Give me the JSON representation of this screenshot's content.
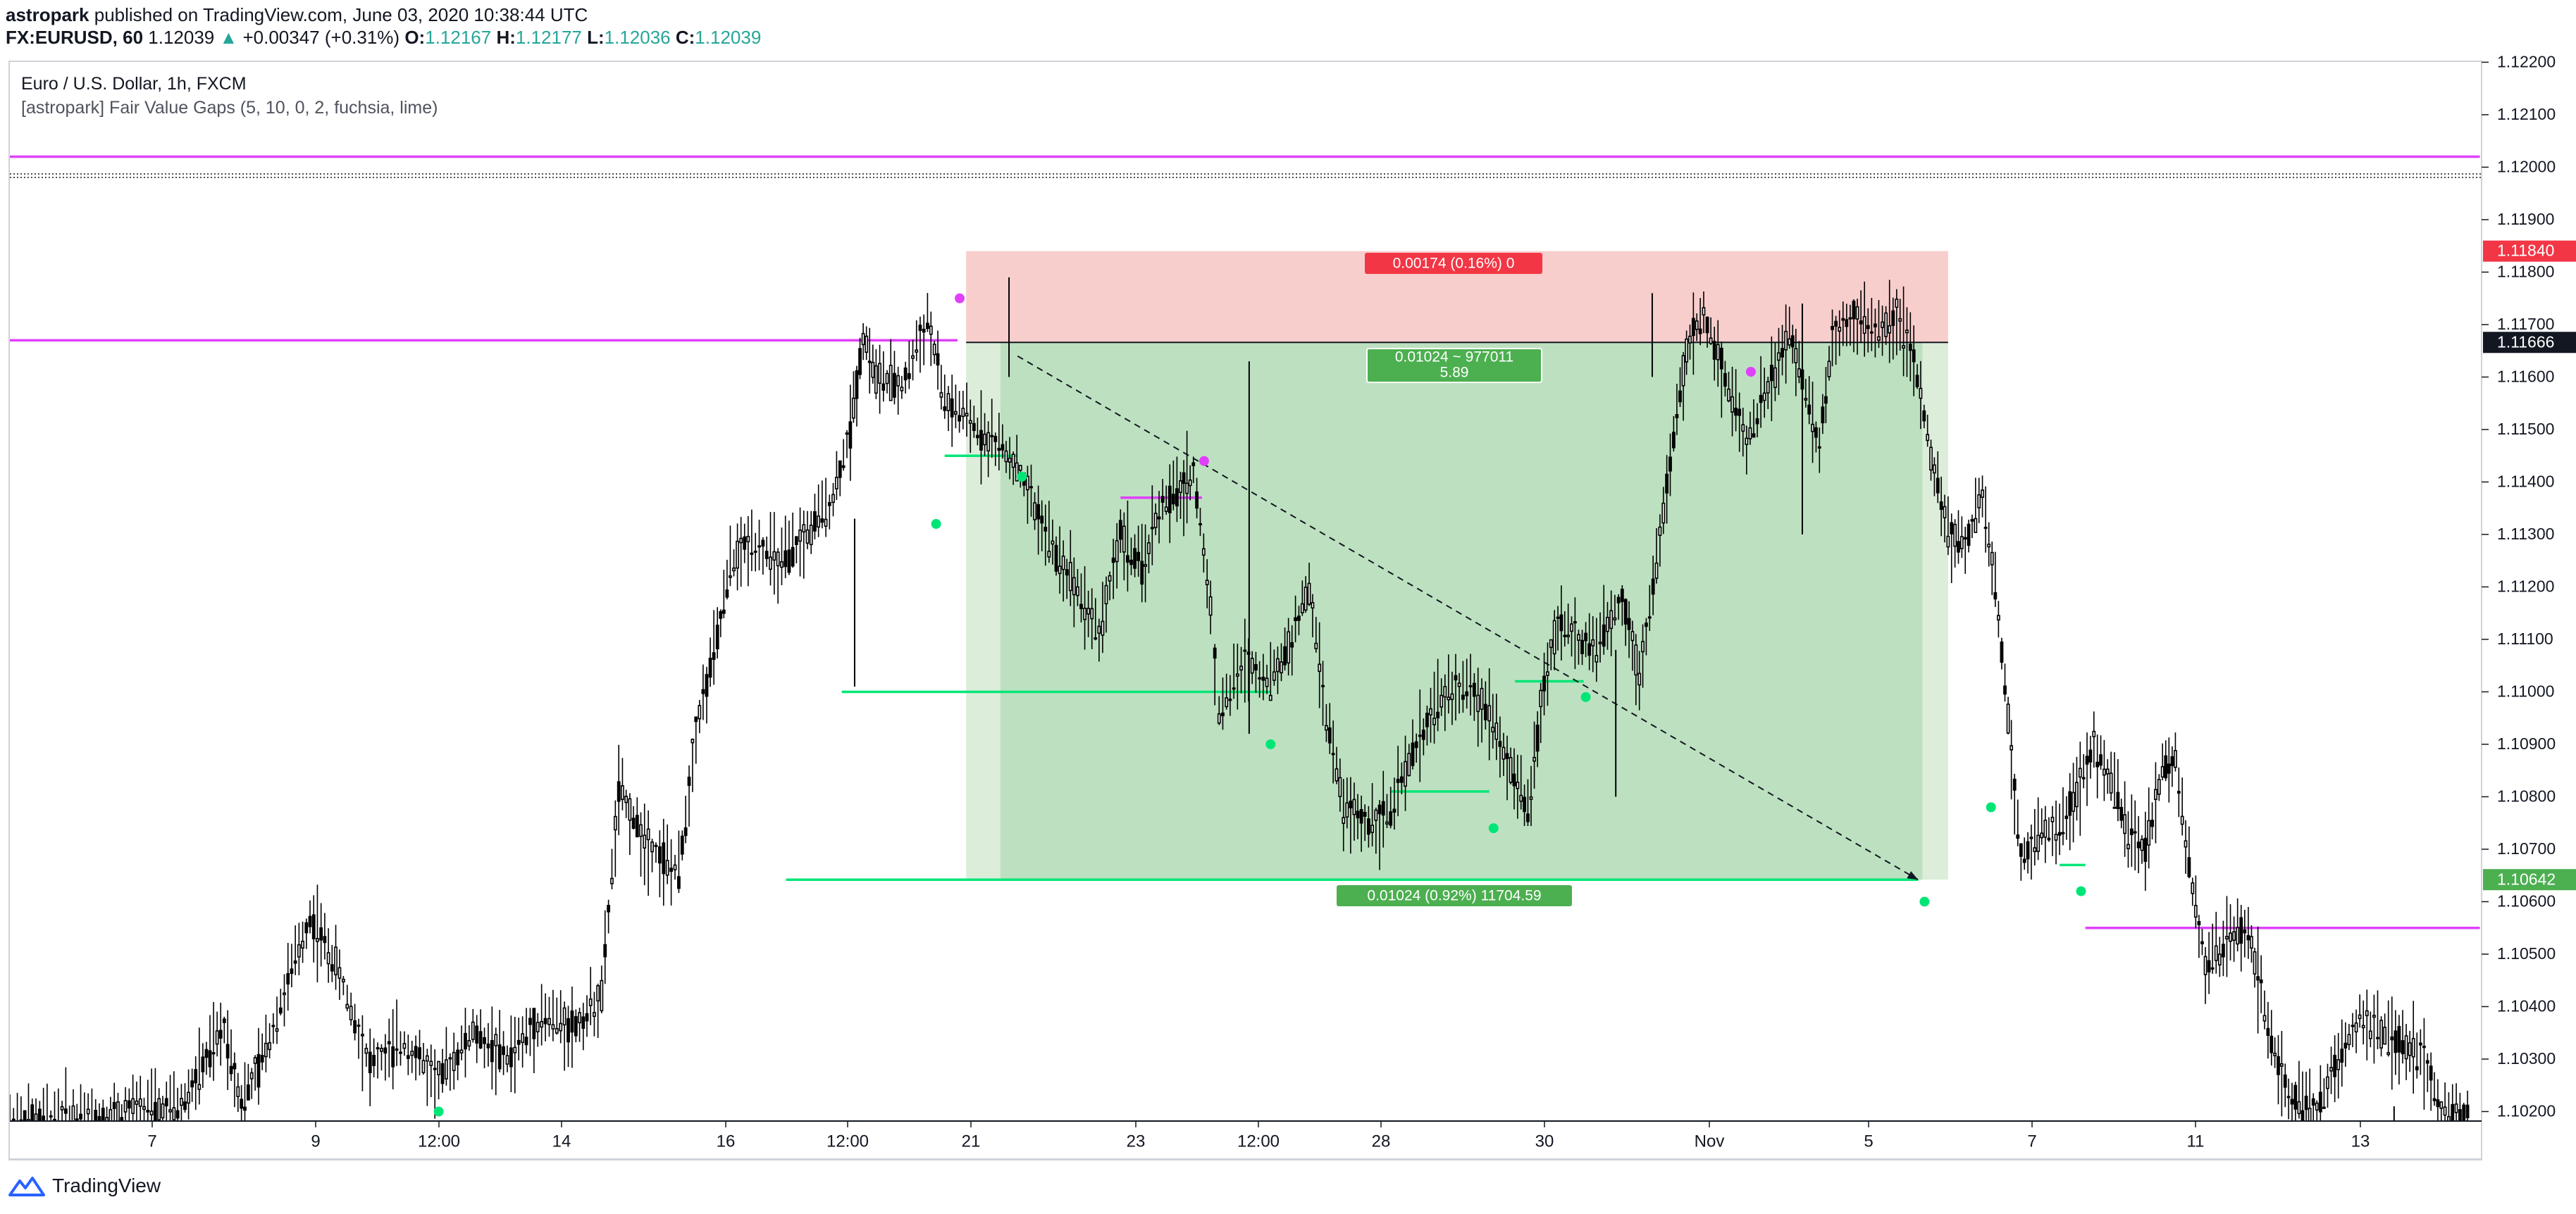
{
  "header": {
    "author": "astropark",
    "published_text": "published on TradingView.com, June 03, 2020 10:38:44 UTC",
    "symbol": "FX:EURUSD, 60",
    "last": "1.12039",
    "change_arrow": "▲",
    "change": "+0.00347 (+0.31%)",
    "o_label": "O:",
    "o_value": "1.12167",
    "h_label": "H:",
    "h_value": "1.12177",
    "l_label": "L:",
    "l_value": "1.12036",
    "c_label": "C:",
    "c_value": "1.12039"
  },
  "legend": {
    "title": "Euro / U.S. Dollar, 1h, FXCM",
    "indicator": "[astropark] Fair Value Gaps (5, 10, 0, 2, fuchsia, lime)"
  },
  "footer": {
    "brand": "TradingView",
    "brand_icon": "tradingview-logo-icon"
  },
  "colors": {
    "fuchsia": "#e040fb",
    "lime": "#00e676",
    "candle": "#000000",
    "stop_zone": "#f8cecc",
    "target_zone": "#bde1c0",
    "stop_badge": "#f23645",
    "target_badge": "#4caf50"
  },
  "chart_data": {
    "type": "candlestick",
    "title": "Euro / U.S. Dollar, 1h, FXCM",
    "x_ticks": [
      "7",
      "9",
      "12:00",
      "14",
      "16",
      "12:00",
      "21",
      "23",
      "12:00",
      "28",
      "30",
      "Nov",
      "5",
      "7",
      "11",
      "13"
    ],
    "y_ticks": [
      "1.12200",
      "1.12100",
      "1.12000",
      "1.11900",
      "1.11800",
      "1.11700",
      "1.11600",
      "1.11500",
      "1.11400",
      "1.11300",
      "1.11200",
      "1.11100",
      "1.11000",
      "1.10900",
      "1.10800",
      "1.10700",
      "1.10600",
      "1.10500",
      "1.10400",
      "1.10300",
      "1.10200"
    ],
    "ylim": [
      1.1818,
      1.1222
    ],
    "price_labels": [
      {
        "text": "1.11840",
        "value": 1.1184,
        "color": "#f23645"
      },
      {
        "text": "1.11666",
        "value": 1.11666,
        "color": "#131722"
      },
      {
        "text": "1.10642",
        "value": 1.10642,
        "color": "#4caf50"
      }
    ],
    "position": {
      "stop_label": "0.00174 (0.16%) 0",
      "rr_label_1": "0.01024 ~ 977011",
      "rr_label_2": "5.89",
      "target_label": "0.01024 (0.92%) 11704.59",
      "entry": 1.11666,
      "stop": 1.1184,
      "target": 1.10642
    },
    "close_path": [
      [
        0,
        1.1018
      ],
      [
        40,
        1.1019
      ],
      [
        80,
        1.1021
      ],
      [
        100,
        1.1036
      ],
      [
        108,
        1.1022
      ],
      [
        116,
        1.1028
      ],
      [
        140,
        1.1057
      ],
      [
        152,
        1.1048
      ],
      [
        168,
        1.1029
      ],
      [
        184,
        1.1033
      ],
      [
        200,
        1.1026
      ],
      [
        216,
        1.1035
      ],
      [
        232,
        1.103
      ],
      [
        248,
        1.1038
      ],
      [
        264,
        1.1036
      ],
      [
        276,
        1.1042
      ],
      [
        284,
        1.1081
      ],
      [
        296,
        1.1072
      ],
      [
        312,
        1.1065
      ],
      [
        320,
        1.1093
      ],
      [
        330,
        1.111
      ],
      [
        336,
        1.1124
      ],
      [
        346,
        1.1129
      ],
      [
        360,
        1.1124
      ],
      [
        372,
        1.113
      ],
      [
        384,
        1.1137
      ],
      [
        392,
        1.115
      ],
      [
        398,
        1.1168
      ],
      [
        404,
        1.116
      ],
      [
        416,
        1.1158
      ],
      [
        428,
        1.1171
      ],
      [
        436,
        1.1155
      ],
      [
        448,
        1.1151
      ],
      [
        458,
        1.1148
      ],
      [
        468,
        1.1144
      ],
      [
        478,
        1.1135
      ],
      [
        488,
        1.1126
      ],
      [
        498,
        1.112
      ],
      [
        508,
        1.1111
      ],
      [
        518,
        1.113
      ],
      [
        528,
        1.1123
      ],
      [
        536,
        1.1135
      ],
      [
        546,
        1.1138
      ],
      [
        552,
        1.1142
      ],
      [
        560,
        1.1116
      ],
      [
        564,
        1.1096
      ],
      [
        576,
        1.1106
      ],
      [
        588,
        1.1102
      ],
      [
        598,
        1.111
      ],
      [
        606,
        1.112
      ],
      [
        614,
        1.1095
      ],
      [
        622,
        1.1078
      ],
      [
        632,
        1.1075
      ],
      [
        644,
        1.1077
      ],
      [
        656,
        1.109
      ],
      [
        666,
        1.1098
      ],
      [
        676,
        1.1101
      ],
      [
        690,
        1.1097
      ],
      [
        700,
        1.1085
      ],
      [
        708,
        1.1077
      ],
      [
        714,
        1.1097
      ],
      [
        722,
        1.1114
      ],
      [
        730,
        1.111
      ],
      [
        740,
        1.1108
      ],
      [
        752,
        1.1118
      ],
      [
        760,
        1.1103
      ],
      [
        768,
        1.1125
      ],
      [
        776,
        1.1148
      ],
      [
        782,
        1.1165
      ],
      [
        790,
        1.1172
      ],
      [
        800,
        1.116
      ],
      [
        810,
        1.1148
      ],
      [
        820,
        1.1158
      ],
      [
        830,
        1.1168
      ],
      [
        836,
        1.116
      ],
      [
        844,
        1.1147
      ],
      [
        850,
        1.1168
      ],
      [
        860,
        1.1172
      ],
      [
        870,
        1.1168
      ],
      [
        880,
        1.1172
      ],
      [
        888,
        1.1163
      ],
      [
        896,
        1.1145
      ],
      [
        904,
        1.113
      ],
      [
        912,
        1.1128
      ],
      [
        920,
        1.1137
      ],
      [
        926,
        1.112
      ],
      [
        932,
        1.1095
      ],
      [
        938,
        1.1068
      ],
      [
        946,
        1.1072
      ],
      [
        956,
        1.1075
      ],
      [
        964,
        1.108
      ],
      [
        972,
        1.109
      ],
      [
        980,
        1.1083
      ],
      [
        988,
        1.1073
      ],
      [
        996,
        1.107
      ],
      [
        1004,
        1.1085
      ],
      [
        1010,
        1.1087
      ],
      [
        1018,
        1.1062
      ],
      [
        1024,
        1.1048
      ],
      [
        1034,
        1.1052
      ],
      [
        1044,
        1.1055
      ],
      [
        1050,
        1.1042
      ],
      [
        1058,
        1.1027
      ],
      [
        1066,
        1.1022
      ],
      [
        1076,
        1.102
      ],
      [
        1086,
        1.103
      ],
      [
        1096,
        1.1038
      ],
      [
        1106,
        1.1035
      ],
      [
        1116,
        1.1033
      ],
      [
        1126,
        1.103
      ],
      [
        1134,
        1.102
      ],
      [
        1148,
        1.1018
      ]
    ],
    "levels": [
      {
        "color": "fuchsia",
        "value": 1.1202,
        "x_from": 0,
        "x_to": 1152
      },
      {
        "color": "fuchsia",
        "value": 1.1167,
        "x_from": 0,
        "x_to": 442
      },
      {
        "color": "fuchsia",
        "value": 1.1137,
        "x_from": 518,
        "x_to": 556
      },
      {
        "color": "fuchsia",
        "value": 1.1055,
        "x_from": 968,
        "x_to": 1152
      },
      {
        "color": "lime",
        "value": 1.1145,
        "x_from": 436,
        "x_to": 470
      },
      {
        "color": "lime",
        "value": 1.11,
        "x_from": 388,
        "x_to": 588
      },
      {
        "color": "lime",
        "value": 1.1102,
        "x_from": 702,
        "x_to": 734
      },
      {
        "color": "lime",
        "value": 1.1081,
        "x_from": 644,
        "x_to": 690
      },
      {
        "color": "lime",
        "value": 1.10642,
        "x_from": 362,
        "x_to": 890
      },
      {
        "color": "lime",
        "value": 1.1067,
        "x_from": 956,
        "x_to": 968
      }
    ],
    "markers": [
      {
        "color": "fuchsia",
        "x": 443,
        "value": 1.1175
      },
      {
        "color": "fuchsia",
        "x": 557,
        "value": 1.1144
      },
      {
        "color": "fuchsia",
        "x": 812,
        "value": 1.1161
      },
      {
        "color": "lime",
        "x": 432,
        "value": 1.1132
      },
      {
        "color": "lime",
        "x": 472,
        "value": 1.1141
      },
      {
        "color": "lime",
        "x": 588,
        "value": 1.109
      },
      {
        "color": "lime",
        "x": 692,
        "value": 1.1074
      },
      {
        "color": "lime",
        "x": 735,
        "value": 1.1099
      },
      {
        "color": "lime",
        "x": 893,
        "value": 1.106
      },
      {
        "color": "lime",
        "x": 924,
        "value": 1.1078
      },
      {
        "color": "lime",
        "x": 966,
        "value": 1.1062
      },
      {
        "color": "lime",
        "x": 200,
        "value": 1.102
      }
    ],
    "trendline": {
      "x1": 470,
      "v1": 1.1164,
      "x2": 890,
      "v2": 1.10642
    },
    "position_box": {
      "x_from": 446,
      "x_mid": 462,
      "x_to": 904
    },
    "wicks": [
      {
        "x": 578,
        "hi": 1.1163,
        "lo": 1.1092
      },
      {
        "x": 749,
        "hi": 1.1108,
        "lo": 1.108
      },
      {
        "x": 394,
        "hi": 1.1133,
        "lo": 1.1101
      },
      {
        "x": 466,
        "hi": 1.1179,
        "lo": 1.116
      },
      {
        "x": 766,
        "hi": 1.1176,
        "lo": 1.116
      },
      {
        "x": 836,
        "hi": 1.1174,
        "lo": 1.113
      },
      {
        "x": 1112,
        "hi": 1.1021,
        "lo": 1.1016
      }
    ]
  }
}
